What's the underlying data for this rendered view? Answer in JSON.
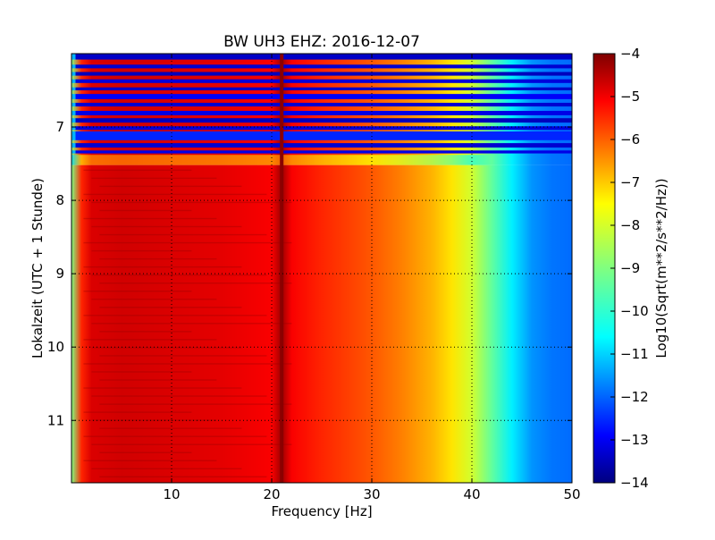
{
  "chart_data": {
    "type": "heatmap",
    "title": "BW UH3 EHZ: 2016-12-07",
    "xlabel": "Frequency [Hz]",
    "ylabel": "Lokalzeit (UTC + 1 Stunde)",
    "xlim": [
      0,
      50
    ],
    "ylim": [
      6.0,
      11.85
    ],
    "y_inverted": true,
    "x_ticks": [
      10,
      20,
      30,
      40,
      50
    ],
    "y_ticks": [
      7,
      8,
      9,
      10,
      11
    ],
    "grid": true,
    "colormap": "jet",
    "colorbar": {
      "label": "Log10(Sqrt(m**2/s**2/Hz))",
      "range": [
        -14,
        -4
      ],
      "ticks": [
        -4,
        -5,
        -6,
        -7,
        -8,
        -9,
        -10,
        -11,
        -12,
        -13,
        -14
      ]
    },
    "spectrum_profile": {
      "frequency_hz": [
        0,
        1,
        2,
        5,
        10,
        15,
        20,
        21,
        22,
        25,
        28,
        30,
        33,
        36,
        38,
        40,
        42,
        44,
        46,
        48,
        50
      ],
      "log10_amplitude": [
        -9.0,
        -5.6,
        -4.9,
        -4.8,
        -4.9,
        -5.0,
        -5.2,
        -4.3,
        -5.2,
        -5.6,
        -5.9,
        -6.1,
        -6.5,
        -7.0,
        -7.5,
        -8.2,
        -9.3,
        -10.4,
        -11.3,
        -11.6,
        -11.7
      ]
    },
    "narrowband_peak_hz": 21.0,
    "gap_bands": [
      {
        "time_start": 6.0,
        "time_end": 6.08,
        "log10_amplitude": -13.3
      },
      {
        "time_start": 6.15,
        "time_end": 6.2,
        "log10_amplitude": -13.2
      },
      {
        "time_start": 6.25,
        "time_end": 6.3,
        "log10_amplitude": -13.4
      },
      {
        "time_start": 6.35,
        "time_end": 6.4,
        "log10_amplitude": -13.1
      },
      {
        "time_start": 6.46,
        "time_end": 6.5,
        "log10_amplitude": -13.3
      },
      {
        "time_start": 6.55,
        "time_end": 6.62,
        "log10_amplitude": -12.8
      },
      {
        "time_start": 6.67,
        "time_end": 6.72,
        "log10_amplitude": -13.2
      },
      {
        "time_start": 6.78,
        "time_end": 6.84,
        "log10_amplitude": -13.0
      },
      {
        "time_start": 6.88,
        "time_end": 6.94,
        "log10_amplitude": -13.4
      },
      {
        "time_start": 6.99,
        "time_end": 7.04,
        "log10_amplitude": -13.1
      },
      {
        "time_start": 7.06,
        "time_end": 7.18,
        "log10_amplitude": -12.4
      },
      {
        "time_start": 7.22,
        "time_end": 7.28,
        "log10_amplitude": -13.2
      },
      {
        "time_start": 7.32,
        "time_end": 7.36,
        "log10_amplitude": -13.0
      }
    ],
    "transition_band": {
      "time_start": 7.38,
      "time_end": 7.52
    },
    "cutoff_time": 7.52
  }
}
